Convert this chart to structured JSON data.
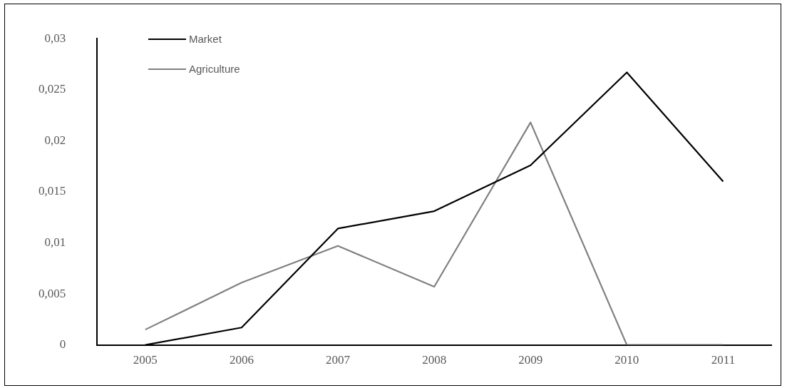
{
  "chart_data": {
    "type": "line",
    "categories": [
      "2005",
      "2006",
      "2007",
      "2008",
      "2009",
      "2010",
      "2011"
    ],
    "series": [
      {
        "name": "Market",
        "color": "#000000",
        "values": [
          0,
          0.0017,
          0.0114,
          0.0131,
          0.0176,
          0.0267,
          0.016
        ]
      },
      {
        "name": "Agriculture",
        "color": "#808080",
        "values": [
          0.0015,
          0.0061,
          0.0097,
          0.0057,
          0.0218,
          0,
          0
        ]
      }
    ],
    "ylim": [
      0,
      0.03
    ],
    "yticks": [
      {
        "value": 0,
        "label": "0"
      },
      {
        "value": 0.005,
        "label": "0,005"
      },
      {
        "value": 0.01,
        "label": "0,01"
      },
      {
        "value": 0.015,
        "label": "0,015"
      },
      {
        "value": 0.02,
        "label": "0,02"
      },
      {
        "value": 0.025,
        "label": "0,025"
      },
      {
        "value": 0.03,
        "label": "0,03"
      }
    ],
    "grid": false,
    "legend": "top left",
    "marker": "none",
    "line_style": "solid"
  }
}
